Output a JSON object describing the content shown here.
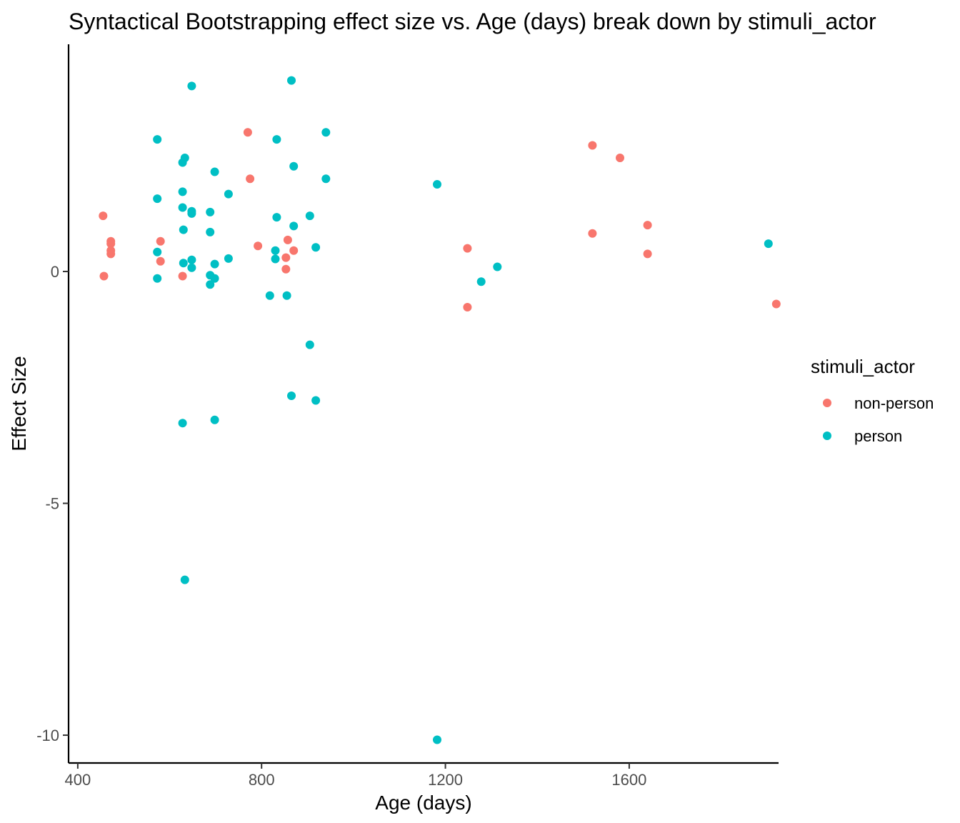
{
  "chart_data": {
    "type": "scatter",
    "title": "Syntactical Bootstrapping effect size vs. Age (days) break down by stimuli_actor",
    "xlabel": "Age (days)",
    "ylabel": "Effect Size",
    "xlim": [
      380,
      1925
    ],
    "ylim": [
      -10.6,
      4.9
    ],
    "x_ticks": [
      400,
      800,
      1200,
      1600
    ],
    "y_ticks": [
      0,
      -5,
      -10
    ],
    "x_tick_labels": [
      "400",
      "800",
      "1200",
      "1600"
    ],
    "y_tick_labels": [
      "0",
      "-5",
      "-10"
    ],
    "grid": false,
    "legend": {
      "title": "stimuli_actor",
      "position": "right"
    },
    "series": [
      {
        "name": "non-person",
        "color": "#F8766D",
        "points": [
          [
            455,
            1.2
          ],
          [
            457,
            -0.1
          ],
          [
            472,
            0.65
          ],
          [
            472,
            0.6
          ],
          [
            472,
            0.45
          ],
          [
            472,
            0.38
          ],
          [
            580,
            0.65
          ],
          [
            580,
            0.22
          ],
          [
            628,
            -0.1
          ],
          [
            770,
            3.0
          ],
          [
            775,
            2.0
          ],
          [
            792,
            0.55
          ],
          [
            857,
            0.68
          ],
          [
            853,
            0.3
          ],
          [
            853,
            0.05
          ],
          [
            870,
            0.45
          ],
          [
            1248,
            0.5
          ],
          [
            1248,
            -0.77
          ],
          [
            1520,
            2.72
          ],
          [
            1520,
            0.82
          ],
          [
            1580,
            2.45
          ],
          [
            1640,
            1.0
          ],
          [
            1640,
            0.38
          ],
          [
            1920,
            -0.7
          ]
        ]
      },
      {
        "name": "person",
        "color": "#00BFC4",
        "points": [
          [
            573,
            2.85
          ],
          [
            573,
            1.57
          ],
          [
            573,
            0.42
          ],
          [
            573,
            -0.15
          ],
          [
            628,
            2.35
          ],
          [
            633,
            2.45
          ],
          [
            628,
            1.72
          ],
          [
            628,
            1.38
          ],
          [
            630,
            0.9
          ],
          [
            630,
            0.18
          ],
          [
            628,
            -3.27
          ],
          [
            633,
            -6.65
          ],
          [
            648,
            4.0
          ],
          [
            648,
            1.3
          ],
          [
            648,
            1.25
          ],
          [
            648,
            0.25
          ],
          [
            648,
            0.08
          ],
          [
            688,
            1.28
          ],
          [
            688,
            0.85
          ],
          [
            688,
            -0.08
          ],
          [
            688,
            -0.28
          ],
          [
            698,
            2.15
          ],
          [
            698,
            0.16
          ],
          [
            698,
            -0.15
          ],
          [
            698,
            -3.2
          ],
          [
            728,
            1.67
          ],
          [
            728,
            0.28
          ],
          [
            818,
            -0.52
          ],
          [
            830,
            0.45
          ],
          [
            830,
            0.27
          ],
          [
            833,
            2.85
          ],
          [
            833,
            1.17
          ],
          [
            855,
            -0.52
          ],
          [
            865,
            4.12
          ],
          [
            865,
            -2.68
          ],
          [
            870,
            2.27
          ],
          [
            870,
            0.98
          ],
          [
            905,
            1.2
          ],
          [
            905,
            -1.58
          ],
          [
            918,
            0.52
          ],
          [
            918,
            -2.78
          ],
          [
            940,
            3.0
          ],
          [
            940,
            2.0
          ],
          [
            1182,
            1.88
          ],
          [
            1182,
            -10.1
          ],
          [
            1278,
            -0.22
          ],
          [
            1313,
            0.1
          ],
          [
            1903,
            0.6
          ]
        ]
      }
    ]
  }
}
